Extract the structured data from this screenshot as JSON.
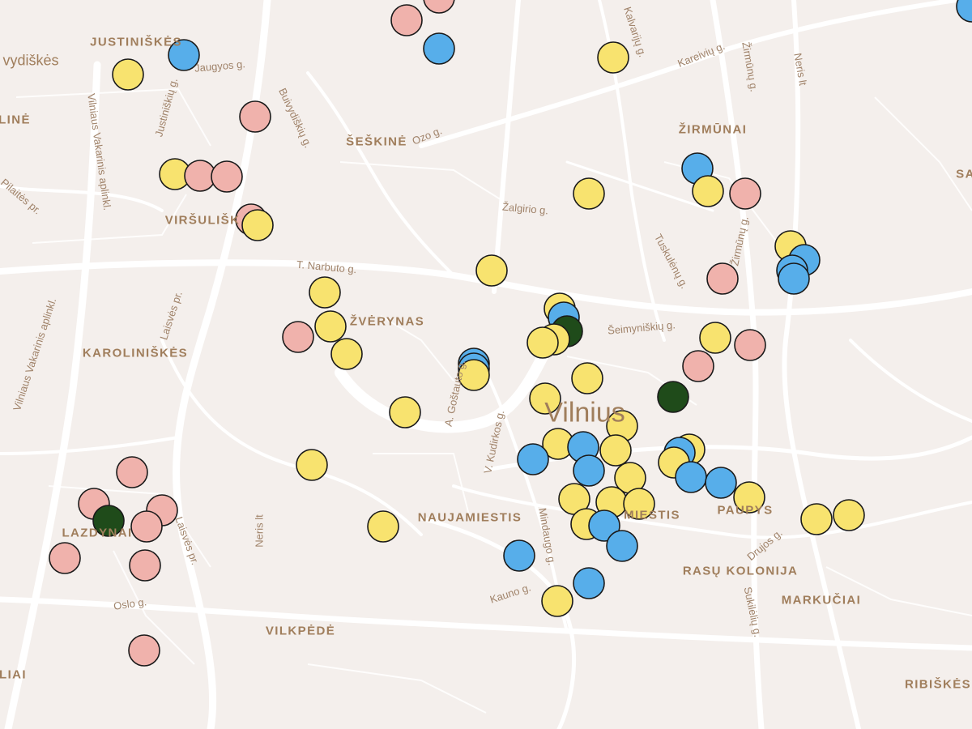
{
  "map": {
    "city_label": "Vilnius",
    "marker_colors": {
      "yellow": "#f8e36f",
      "blue": "#57aeea",
      "pink": "#f0b2ac",
      "green": "#1f4b1a",
      "outline": "#1a1a1a"
    },
    "district_labels": [
      "JUSTINIŠKĖS",
      "vydiškės",
      "LINĖ",
      "ŠEŠKINĖ",
      "ŽIRMŪNAI",
      "SA",
      "VIRŠULIŠK",
      "ŽVĖRYNAS",
      "KAROLINIŠKĖS",
      "NAUJAMIESTIS",
      "MIESTIS",
      "PAUPYS",
      "RASŲ KOLONIJA",
      "MARKUČIAI",
      "LAZDYNAI",
      "VILKPĖDĖ",
      "RIBIŠKĖS",
      "LIAI"
    ],
    "street_labels": [
      "Kalvarijų g.",
      "Kareivių g.",
      "Žirmūnų g.",
      "Neris lt",
      "Jaugyos g.",
      "Justiniškių g.",
      "Vilniaus Vakarinis aplinkl.",
      "Buivydiškių g.",
      "Ozo g.",
      "Pilaitės pr.",
      "Žalgirio g.",
      "Tuskulėnų g.",
      "Žirmūnų g.",
      "T. Narbuto g.",
      "Laisvės pr.",
      "Šeimyniškių g.",
      "A. Goštauto g.",
      "V. Kudirkos g.",
      "Vilniaus Vakarinis aplinkl.",
      "Neris lt",
      "Mindaugo g.",
      "Kauno g.",
      "Drujos g.",
      "Sukilėlių g.",
      "Laisvės pr.",
      "Oslo g."
    ]
  }
}
